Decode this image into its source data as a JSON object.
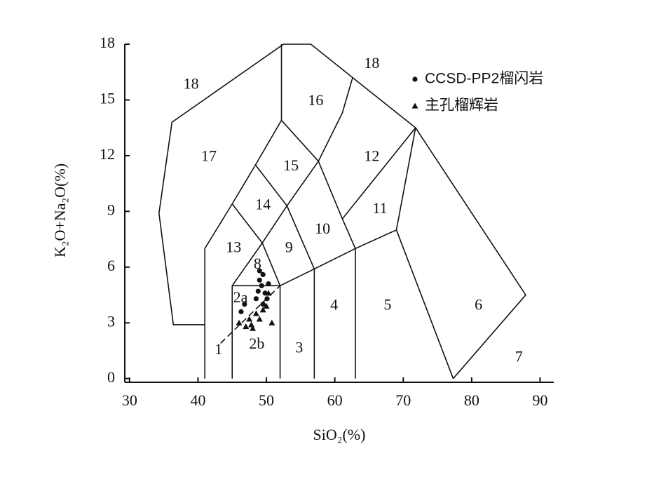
{
  "chart_data": {
    "type": "scatter",
    "x_label": "SiO₂(%)",
    "y_label": "K₂O+Na₂O(%)",
    "xlim": [
      29.3,
      92
    ],
    "ylim": [
      -0.2,
      18
    ],
    "xticks": [
      30,
      40,
      50,
      60,
      70,
      80,
      90
    ],
    "yticks": [
      0,
      3,
      6,
      9,
      12,
      15,
      18
    ],
    "grid": false,
    "legend": "upper right",
    "series": [
      {
        "name": "CCSD-PP2榴闪岩",
        "color": "#111111",
        "marker": "circle",
        "x": [
          49,
          49.5,
          49,
          49.3,
          48.8,
          49.8,
          50.1,
          46.3,
          46.8,
          49.5,
          48.5,
          50.3
        ],
        "y": [
          5.8,
          5.6,
          5.3,
          5.0,
          4.7,
          4.6,
          4.3,
          3.6,
          4.0,
          4.0,
          4.3,
          5.1
        ]
      },
      {
        "name": "主孔榴辉岩",
        "color": "#111111",
        "marker": "triangle",
        "x": [
          46,
          47,
          47.5,
          48,
          48.5,
          49,
          49.5,
          50,
          50.8,
          47.8,
          50.3
        ],
        "y": [
          3.0,
          2.8,
          3.2,
          2.7,
          3.5,
          3.2,
          3.7,
          3.9,
          3.0,
          2.9,
          4.6
        ]
      }
    ],
    "boundaries": [
      {
        "x": [
          41,
          36.4,
          34.3,
          36.2,
          52.5,
          56.5,
          62.6,
          71.8,
          87.9,
          77.3
        ],
        "y": [
          2.9,
          2.9,
          8.9,
          13.8,
          18,
          18,
          16.2,
          13.5,
          4.5,
          0
        ]
      },
      {
        "x": [
          41,
          41,
          45,
          48.4,
          52.2,
          52.2
        ],
        "y": [
          0,
          7,
          9.4,
          11.5,
          13.9,
          18
        ]
      },
      {
        "x": [
          45,
          45,
          52,
          52
        ],
        "y": [
          0,
          5,
          5,
          0
        ]
      },
      {
        "x": [
          45,
          49.4,
          53,
          57.6,
          61.1,
          71.8
        ],
        "y": [
          9.4,
          7.3,
          9.3,
          11.7,
          8.6,
          13.5
        ]
      },
      {
        "x": [
          48.4,
          53,
          57,
          57
        ],
        "y": [
          11.5,
          9.3,
          5.9,
          0
        ]
      },
      {
        "x": [
          52.2,
          57.6,
          61.1,
          62.6
        ],
        "y": [
          13.9,
          11.7,
          14.3,
          16.2
        ]
      },
      {
        "x": [
          45,
          49.4,
          52
        ],
        "y": [
          5,
          7.3,
          5
        ]
      },
      {
        "x": [
          52,
          57,
          63,
          69,
          71.8
        ],
        "y": [
          5,
          5.9,
          7,
          8,
          13.5
        ]
      },
      {
        "x": [
          61.1,
          63,
          63
        ],
        "y": [
          8.6,
          7,
          0
        ]
      },
      {
        "x": [
          69,
          77.3
        ],
        "y": [
          8,
          0
        ]
      },
      {
        "x": [
          43.3,
          52
        ],
        "y": [
          1.9,
          5
        ],
        "style": "dashed"
      }
    ],
    "annotations": [
      {
        "text": "18",
        "x": 39,
        "y": 15.8
      },
      {
        "text": "18",
        "x": 65.4,
        "y": 16.9
      },
      {
        "text": "16",
        "x": 57.2,
        "y": 14.9
      },
      {
        "text": "17",
        "x": 41.6,
        "y": 11.9
      },
      {
        "text": "15",
        "x": 53.6,
        "y": 11.4
      },
      {
        "text": "12",
        "x": 65.4,
        "y": 11.9
      },
      {
        "text": "14",
        "x": 49.5,
        "y": 9.3
      },
      {
        "text": "11",
        "x": 66.6,
        "y": 9.1
      },
      {
        "text": "10",
        "x": 58.2,
        "y": 8
      },
      {
        "text": "13",
        "x": 45.2,
        "y": 7
      },
      {
        "text": "9",
        "x": 53.3,
        "y": 7
      },
      {
        "text": "8",
        "x": 48.7,
        "y": 6.1
      },
      {
        "text": "2a",
        "x": 46.2,
        "y": 4.3
      },
      {
        "text": "2b",
        "x": 48.6,
        "y": 1.8
      },
      {
        "text": "1",
        "x": 43,
        "y": 1.5
      },
      {
        "text": "3",
        "x": 54.8,
        "y": 1.6
      },
      {
        "text": "4",
        "x": 59.9,
        "y": 3.9
      },
      {
        "text": "5",
        "x": 67.7,
        "y": 3.9
      },
      {
        "text": "6",
        "x": 81,
        "y": 3.9
      },
      {
        "text": "7",
        "x": 86.9,
        "y": 1.1
      }
    ]
  }
}
